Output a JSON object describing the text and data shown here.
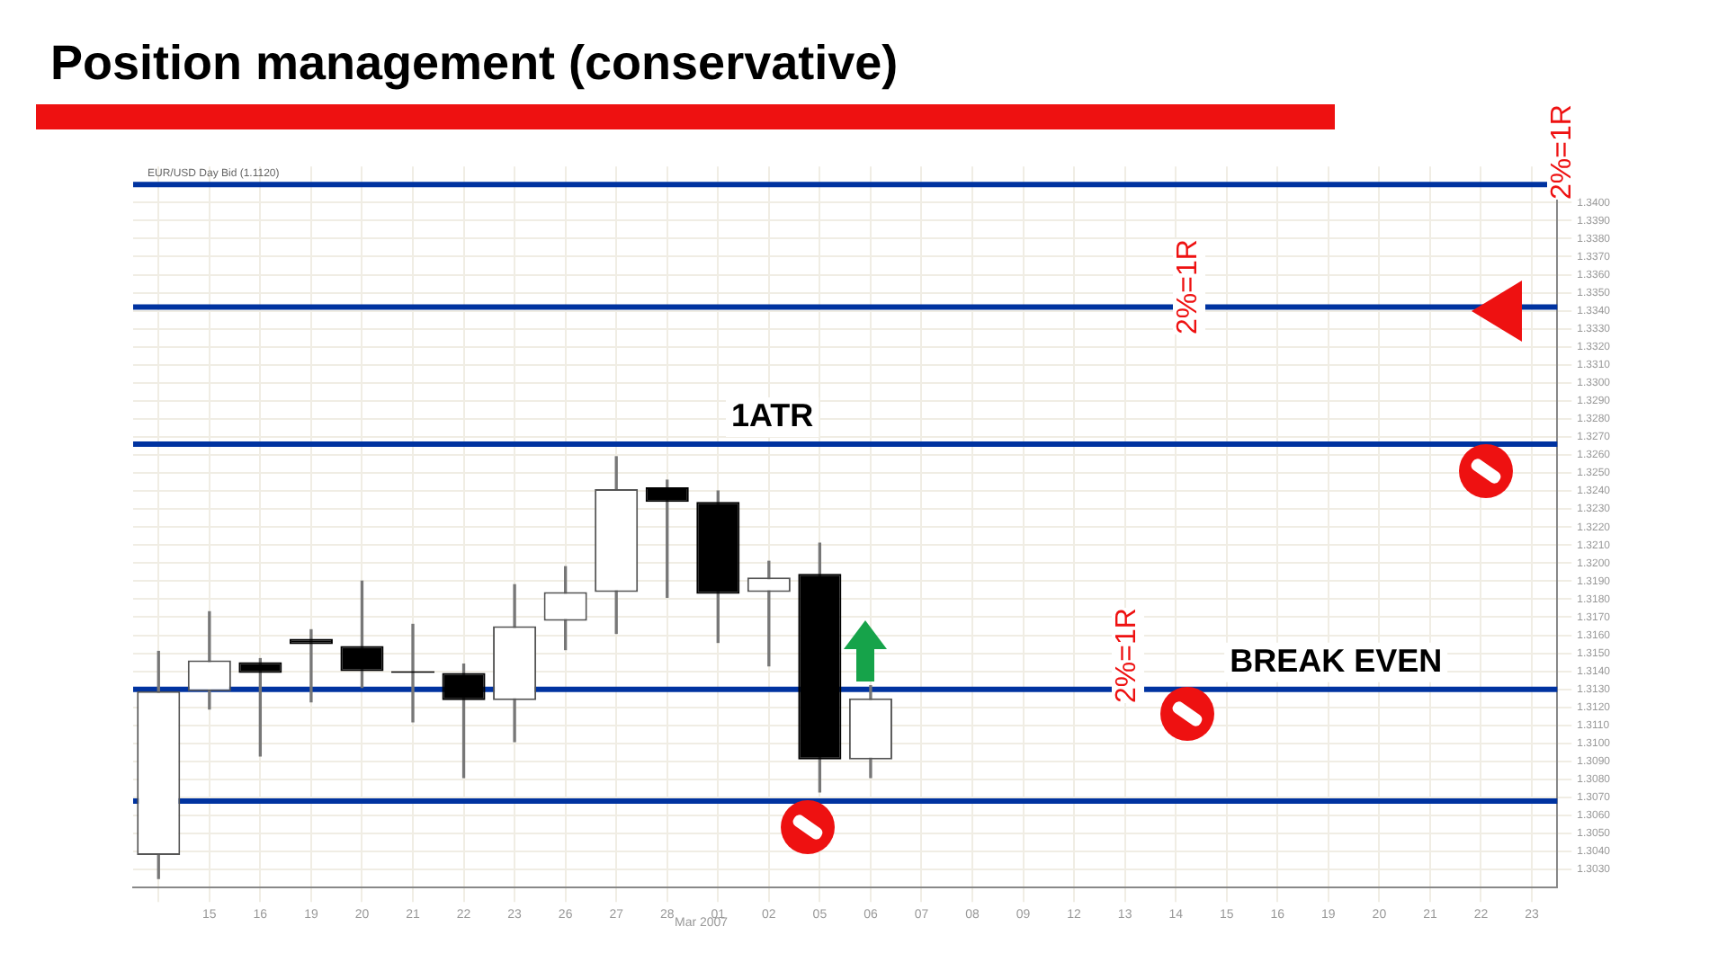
{
  "chart_data": {
    "type": "candlestick",
    "title": "Position management (conservative)",
    "subtitle": "EUR/USD Day Bid (1.1120)",
    "categories": [
      null,
      "15",
      "16",
      "19",
      "20",
      "21",
      "22",
      "23",
      "26",
      "27",
      "28",
      "01",
      "02",
      "05",
      "06",
      "07",
      "08",
      "09",
      "12",
      "13",
      "14",
      "15",
      "16",
      "19",
      "20",
      "21",
      "22",
      "23"
    ],
    "ohlc": [
      [
        1.3038,
        1.3151,
        1.3025,
        1.3129
      ],
      [
        1.3129,
        1.3173,
        1.3119,
        1.3146
      ],
      [
        1.3145,
        1.3147,
        1.3093,
        1.3139
      ],
      [
        1.3158,
        1.3163,
        1.3123,
        1.3155
      ],
      [
        1.3154,
        1.319,
        1.3131,
        1.314
      ],
      [
        1.314,
        1.3166,
        1.3112,
        1.3139
      ],
      [
        1.3139,
        1.3144,
        1.3081,
        1.3124
      ],
      [
        1.3124,
        1.3188,
        1.3101,
        1.3165
      ],
      [
        1.3168,
        1.3198,
        1.3152,
        1.3184
      ],
      [
        1.3184,
        1.3259,
        1.3161,
        1.3241
      ],
      [
        1.3242,
        1.3246,
        1.3181,
        1.3234
      ],
      [
        1.3234,
        1.324,
        1.3156,
        1.3183
      ],
      [
        1.3184,
        1.3201,
        1.3143,
        1.3192
      ],
      [
        1.3194,
        1.3211,
        1.3073,
        1.3091
      ],
      [
        1.3091,
        1.3132,
        1.3081,
        1.3125
      ],
      null,
      null,
      null,
      null,
      null,
      null,
      null,
      null,
      null,
      null,
      null,
      null,
      null
    ],
    "ylim": [
      1.302,
      1.342
    ],
    "yticks": [
      {
        "value": 1.303,
        "label": "1.3030"
      },
      {
        "value": 1.304,
        "label": "1.3040"
      },
      {
        "value": 1.305,
        "label": "1.3050"
      },
      {
        "value": 1.306,
        "label": "1.3060"
      },
      {
        "value": 1.307,
        "label": "1.3070"
      },
      {
        "value": 1.308,
        "label": "1.3080"
      },
      {
        "value": 1.309,
        "label": "1.3090"
      },
      {
        "value": 1.31,
        "label": "1.3100"
      },
      {
        "value": 1.311,
        "label": "1.3110"
      },
      {
        "value": 1.312,
        "label": "1.3120"
      },
      {
        "value": 1.313,
        "label": "1.3130"
      },
      {
        "value": 1.314,
        "label": "1.3140"
      },
      {
        "value": 1.315,
        "label": "1.3150"
      },
      {
        "value": 1.316,
        "label": "1.3160"
      },
      {
        "value": 1.317,
        "label": "1.3170"
      },
      {
        "value": 1.318,
        "label": "1.3180"
      },
      {
        "value": 1.319,
        "label": "1.3190"
      },
      {
        "value": 1.32,
        "label": "1.3200"
      },
      {
        "value": 1.321,
        "label": "1.3210"
      },
      {
        "value": 1.322,
        "label": "1.3220"
      },
      {
        "value": 1.323,
        "label": "1.3230"
      },
      {
        "value": 1.324,
        "label": "1.3240"
      },
      {
        "value": 1.325,
        "label": "1.3250"
      },
      {
        "value": 1.326,
        "label": "1.3260"
      },
      {
        "value": 1.327,
        "label": "1.3270"
      },
      {
        "value": 1.328,
        "label": "1.3280"
      },
      {
        "value": 1.329,
        "label": "1.3290"
      },
      {
        "value": 1.33,
        "label": "1.3300"
      },
      {
        "value": 1.331,
        "label": "1.3310"
      },
      {
        "value": 1.332,
        "label": "1.3320"
      },
      {
        "value": 1.333,
        "label": "1.3330"
      },
      {
        "value": 1.334,
        "label": "1.3340"
      },
      {
        "value": 1.335,
        "label": "1.3350"
      },
      {
        "value": 1.336,
        "label": "1.3360"
      },
      {
        "value": 1.337,
        "label": "1.3370"
      },
      {
        "value": 1.338,
        "label": "1.3380"
      },
      {
        "value": 1.339,
        "label": "1.3390"
      },
      {
        "value": 1.34,
        "label": "1.3400"
      }
    ],
    "grid": true,
    "ref_lines": [
      {
        "axis": "y",
        "value": 1.3068,
        "color": "#0033a0"
      },
      {
        "axis": "y",
        "value": 1.313,
        "label": "BREAK EVEN",
        "color": "#0033a0"
      },
      {
        "axis": "y",
        "value": 1.3266,
        "label": "1ATR",
        "color": "#0033a0"
      },
      {
        "axis": "y",
        "value": 1.3342,
        "color": "#0033a0"
      },
      {
        "axis": "y",
        "value": 1.341,
        "color": "#0033a0"
      }
    ],
    "annotations": [
      "2%=1R",
      "2%=1R",
      "2%=1R",
      "Mar 2007"
    ]
  }
}
